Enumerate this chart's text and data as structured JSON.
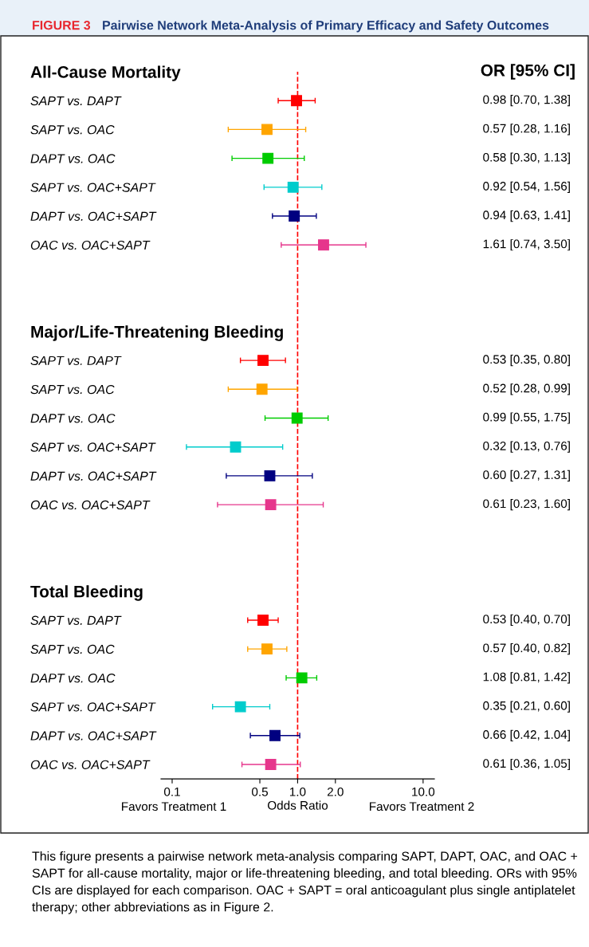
{
  "chart_data": {
    "type": "scatter",
    "orientation": "horizontal",
    "categories": [
      "All-Cause Mortality",
      "SAPT vs. DAPT",
      "SAPT vs. OAC",
      "DAPT vs. OAC",
      "SAPT vs. OAC+SAPT",
      "DAPT vs. OAC+SAPT",
      "OAC vs. OAC+SAPT",
      null,
      null,
      "Major/Life-Threatening Bleeding",
      "SAPT vs. DAPT",
      "SAPT vs. OAC",
      "DAPT vs. OAC",
      "SAPT vs. OAC+SAPT",
      "DAPT vs. OAC+SAPT",
      "OAC vs. OAC+SAPT",
      null,
      null,
      "Total Bleeding",
      "SAPT vs. DAPT",
      "SAPT vs. OAC",
      "DAPT vs. OAC",
      "SAPT vs. OAC+SAPT",
      "DAPT vs. OAC+SAPT",
      "OAC vs. OAC+SAPT"
    ],
    "values": [
      null,
      0.98,
      0.57,
      0.58,
      0.92,
      0.94,
      1.61,
      null,
      null,
      null,
      0.53,
      0.52,
      0.99,
      0.32,
      0.6,
      0.61,
      null,
      null,
      null,
      0.53,
      0.57,
      1.08,
      0.35,
      0.66,
      0.61
    ],
    "errors": [
      null,
      [
        0.7,
        1.38
      ],
      [
        0.28,
        1.16
      ],
      [
        0.3,
        1.13
      ],
      [
        0.54,
        1.56
      ],
      [
        0.63,
        1.41
      ],
      [
        0.74,
        3.5
      ],
      null,
      null,
      null,
      [
        0.35,
        0.8
      ],
      [
        0.28,
        0.99
      ],
      [
        0.55,
        1.75
      ],
      [
        0.13,
        0.76
      ],
      [
        0.27,
        1.31
      ],
      [
        0.23,
        1.6
      ],
      null,
      null,
      null,
      [
        0.4,
        0.7
      ],
      [
        0.4,
        0.82
      ],
      [
        0.81,
        1.42
      ],
      [
        0.21,
        0.6
      ],
      [
        0.42,
        1.04
      ],
      [
        0.36,
        1.05
      ]
    ],
    "colors": [
      "#000000",
      "#ff0000",
      "#ffa500",
      "#00cc00",
      "#00cccc",
      "#000080",
      "#e6368c",
      "#000000",
      "#000000",
      "#000000",
      "#ff0000",
      "#ffa500",
      "#00cc00",
      "#00cccc",
      "#000080",
      "#e6368c",
      "#000000",
      "#000000",
      "#000000",
      "#ff0000",
      "#ffa500",
      "#00cc00",
      "#00cccc",
      "#000080",
      "#e6368c"
    ],
    "value_labels": [
      null,
      "0.98 [0.70, 1.38]",
      "0.57 [0.28, 1.16]",
      "0.58 [0.30, 1.13]",
      "0.92 [0.54, 1.56]",
      "0.94 [0.63, 1.41]",
      "1.61 [0.74, 3.50]",
      null,
      null,
      null,
      "0.53 [0.35, 0.80]",
      "0.52 [0.28, 0.99]",
      "0.99 [0.55, 1.75]",
      "0.32 [0.13, 0.76]",
      "0.60 [0.27, 1.31]",
      "0.61 [0.23, 1.60]",
      null,
      null,
      null,
      "0.53 [0.40, 0.70]",
      "0.57 [0.40, 0.82]",
      "1.08 [0.81, 1.42]",
      "0.35 [0.21, 0.60]",
      "0.66 [0.42, 1.04]",
      "0.61 [0.36, 1.05]"
    ],
    "log": "x",
    "xlim": [
      0.0815,
      12.3
    ],
    "xticks": [
      0.1,
      0.5,
      {
        "value": 1,
        "label": "1.0"
      },
      {
        "value": 2,
        "label": "2.0"
      },
      {
        "value": 10,
        "label": "10.0"
      }
    ],
    "marker": "square",
    "xlabel": "Odds Ratio",
    "ref_lines": [
      {
        "axis": "x",
        "value": 1,
        "color": "#ff0000",
        "line_style": "dashed"
      }
    ],
    "annotations": [
      "FIGURE 3",
      "Pairwise Network Meta-Analysis of Primary Efficacy and Safety Outcomes",
      "OR [95% CI]",
      "Favors Treatment 1",
      "Favors Treatment 2",
      "This figure presents a pairwise network meta-analysis comparing SAPT, DAPT, OAC, and OAC + SAPT for all-cause mortality, major or life-threatening bleeding, and total bleeding. ORs with 95% CIs are displayed for each comparison. OAC + SAPT = oral anticoagulant plus single antiplatelet therapy; other abbreviations as in Figure 2."
    ]
  }
}
